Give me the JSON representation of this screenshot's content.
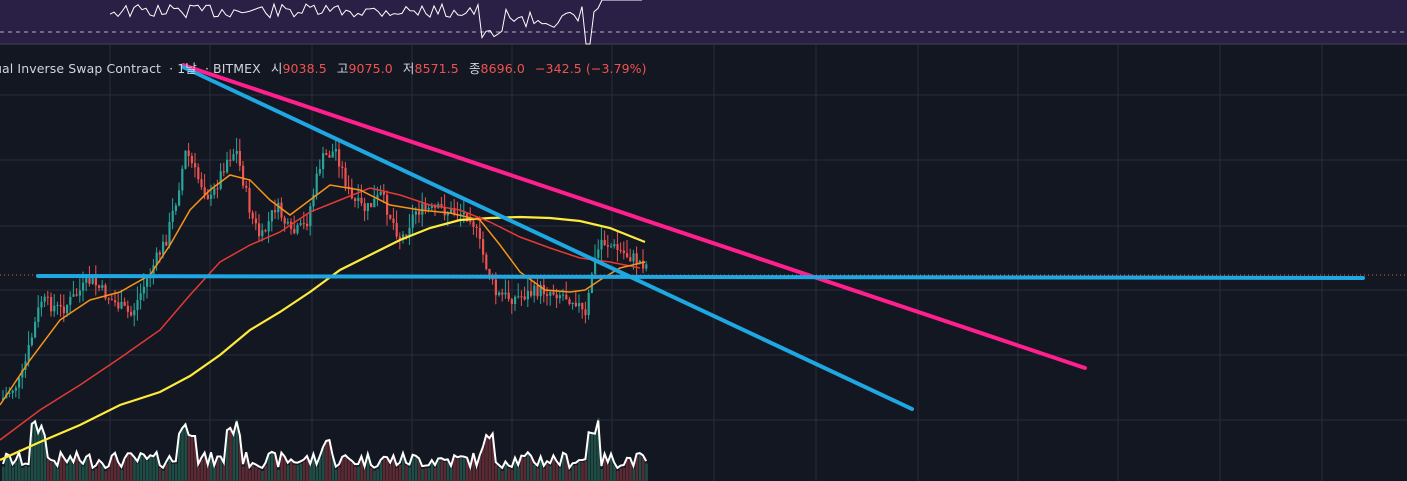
{
  "legend": {
    "symbol_title": "ual Inverse Swap Contract",
    "interval": "1날",
    "exchange": "BITMEX",
    "open_label": "시",
    "open_value": "9038.5",
    "high_label": "고",
    "high_value": "9075.0",
    "low_label": "저",
    "low_value": "8571.5",
    "close_label": "종",
    "close_value": "8696.0",
    "change": "−342.5 (−3.79%)"
  },
  "colors": {
    "background": "#131722",
    "grid": "#2a2e39",
    "indicator_bg": "#2a1f44",
    "bull": "#26a69a",
    "bear": "#ef5350",
    "ma_fast": "#f7931a",
    "ma_mid": "#e53935",
    "ma_slow": "#ffeb3b",
    "trend_down": "#ff1f8e",
    "trend_cyan": "#1ea7e1"
  },
  "chart_data": {
    "type": "candlestick",
    "drawings": [
      {
        "name": "descending resistance",
        "color": "#ff1f8e",
        "from": {
          "bar": 0,
          "price": 13800
        },
        "to": {
          "bar": 180,
          "price": 7200
        }
      },
      {
        "name": "descending support",
        "color": "#1ea7e1",
        "from": {
          "bar": 0,
          "price": 13600
        },
        "to": {
          "bar": 155,
          "price": 6800
        }
      },
      {
        "name": "horizontal level",
        "color": "#1ea7e1",
        "price": 8700
      }
    ],
    "current_price": 8696.0,
    "moving_averages": [
      "fast",
      "mid",
      "slow"
    ]
  }
}
